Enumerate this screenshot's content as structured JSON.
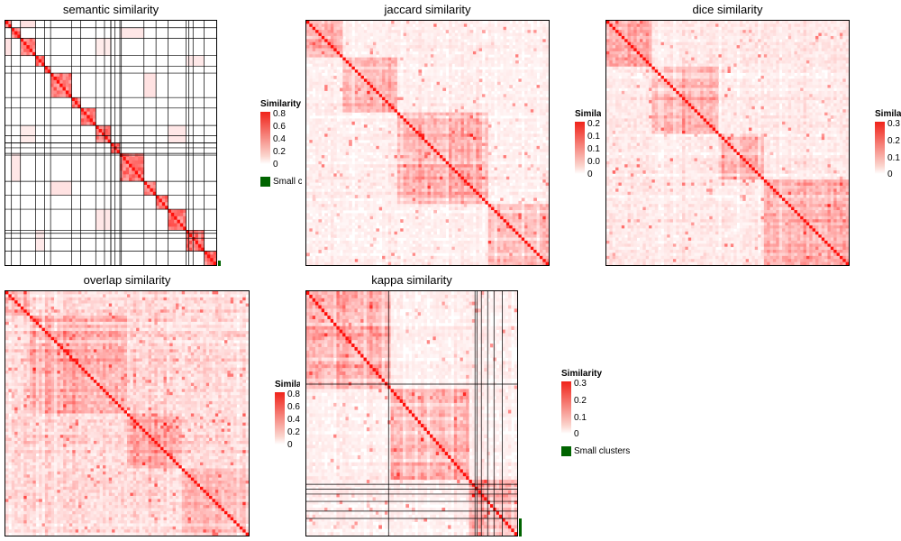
{
  "chart_data": [
    {
      "type": "heatmap",
      "title": "semantic similarity",
      "color_range": [
        "#ffffff",
        "#ff0000"
      ],
      "legend": {
        "title": "Similarity",
        "ticks": [
          "0.8",
          "0.6",
          "0.4",
          "0.2",
          "0"
        ],
        "small_clusters": "Small clusters"
      },
      "cluster_blocks": [
        2,
        3,
        4,
        3,
        2,
        6,
        3,
        4,
        5,
        3,
        7,
        4,
        3,
        6,
        5,
        4
      ],
      "block_pattern": "banded"
    },
    {
      "type": "heatmap",
      "title": "jaccard similarity",
      "color_range": [
        "#ffffff",
        "#ff0000"
      ],
      "legend": {
        "title": "Similarity",
        "ticks": [
          "0.2",
          "0.1",
          "0.1",
          "0.0",
          "0"
        ]
      }
    },
    {
      "type": "heatmap",
      "title": "dice similarity",
      "color_range": [
        "#ffffff",
        "#ff0000"
      ],
      "legend": {
        "title": "Similarity",
        "ticks": [
          "0.3",
          "0.2",
          "0.1",
          "0"
        ]
      }
    },
    {
      "type": "heatmap",
      "title": "overlap similarity",
      "color_range": [
        "#ffffff",
        "#ff0000"
      ],
      "legend": {
        "title": "Similarity",
        "ticks": [
          "0.8",
          "0.6",
          "0.4",
          "0.2",
          "0"
        ]
      }
    },
    {
      "type": "heatmap",
      "title": "kappa similarity",
      "color_range": [
        "#ffffff",
        "#ff0000"
      ],
      "legend": {
        "title": "Similarity",
        "ticks": [
          "0.3",
          "0.2",
          "0.1",
          "0"
        ],
        "small_clusters": "Small clusters"
      }
    }
  ],
  "colors": {
    "small_clusters": "#006400",
    "border": "#000000"
  }
}
